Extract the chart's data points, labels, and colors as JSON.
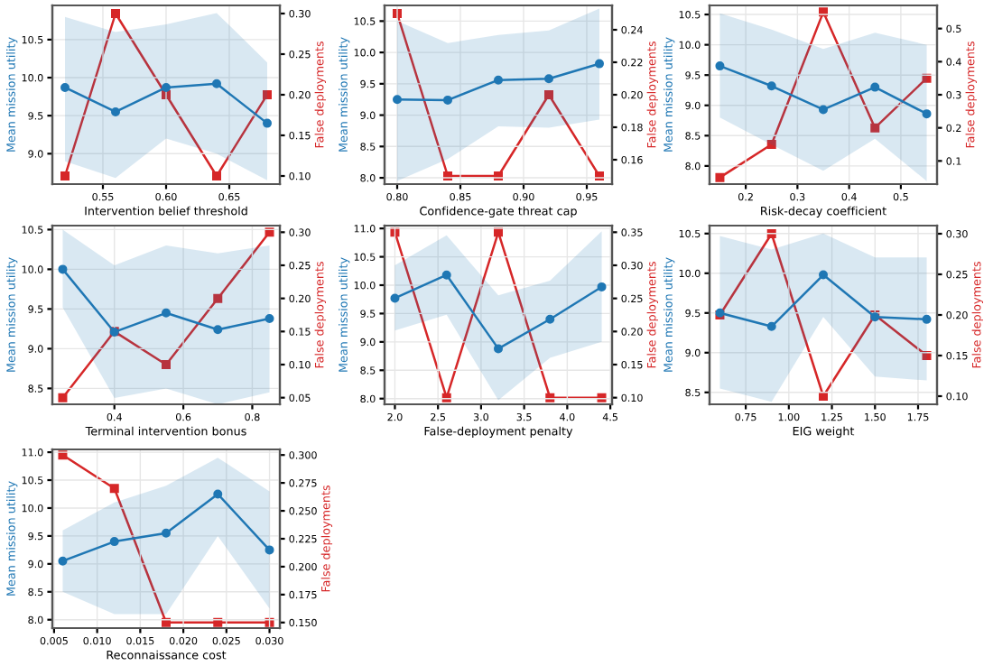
{
  "chart_data": [
    {
      "type": "line",
      "xlabel": "Intervention belief threshold",
      "ylabel": "Mean mission utility",
      "y2label": "False deployments",
      "x": [
        0.52,
        0.56,
        0.6,
        0.64,
        0.68
      ],
      "xlim": [
        0.51,
        0.69
      ],
      "xticks": [
        {
          "value": 0.55,
          "label": "0.55"
        },
        {
          "value": 0.6,
          "label": "0.60"
        },
        {
          "value": 0.65,
          "label": "0.65"
        }
      ],
      "ylim": [
        8.6,
        10.95
      ],
      "yticks": [
        {
          "value": 9,
          "label": "9.0"
        },
        {
          "value": 9.5,
          "label": "9.5"
        },
        {
          "value": 10,
          "label": "10.0"
        },
        {
          "value": 10.5,
          "label": "10.5"
        }
      ],
      "y2lim": [
        0.09,
        0.31
      ],
      "y2ticks": [
        {
          "value": 0.1,
          "label": "0.10"
        },
        {
          "value": 0.15,
          "label": "0.15"
        },
        {
          "value": 0.2,
          "label": "0.20"
        },
        {
          "value": 0.25,
          "label": "0.25"
        },
        {
          "value": 0.3,
          "label": "0.30"
        }
      ],
      "grid": true,
      "series": [
        {
          "color": "#1f77b4",
          "marker": "circle",
          "values": [
            9.87,
            9.55,
            9.87,
            9.92,
            9.4
          ],
          "lower": [
            8.9,
            8.68,
            9.2,
            9.0,
            8.65
          ],
          "upper": [
            10.8,
            10.6,
            10.7,
            10.85,
            10.2
          ]
        },
        {
          "color": "#d62728",
          "marker": "square",
          "axis": "y2",
          "values": [
            0.1,
            0.3,
            0.2,
            0.1,
            0.2
          ]
        }
      ]
    },
    {
      "type": "line",
      "xlabel": "Confidence-gate threat cap",
      "ylabel": "Mean mission utility",
      "y2label": "False deployments",
      "x": [
        0.8,
        0.84,
        0.88,
        0.92,
        0.96
      ],
      "xlim": [
        0.79,
        0.97
      ],
      "xticks": [
        {
          "value": 0.8,
          "label": "0.80"
        },
        {
          "value": 0.85,
          "label": "0.85"
        },
        {
          "value": 0.9,
          "label": "0.90"
        },
        {
          "value": 0.95,
          "label": "0.95"
        }
      ],
      "ylim": [
        7.9,
        10.75
      ],
      "yticks": [
        {
          "value": 8,
          "label": "8.0"
        },
        {
          "value": 8.5,
          "label": "8.5"
        },
        {
          "value": 9,
          "label": "9.0"
        },
        {
          "value": 9.5,
          "label": "9.5"
        },
        {
          "value": 10,
          "label": "10.0"
        },
        {
          "value": 10.5,
          "label": "10.5"
        }
      ],
      "y2lim": [
        0.145,
        0.255
      ],
      "y2ticks": [
        {
          "value": 0.16,
          "label": "0.16"
        },
        {
          "value": 0.18,
          "label": "0.18"
        },
        {
          "value": 0.2,
          "label": "0.20"
        },
        {
          "value": 0.22,
          "label": "0.22"
        },
        {
          "value": 0.24,
          "label": "0.24"
        }
      ],
      "grid": true,
      "series": [
        {
          "color": "#1f77b4",
          "marker": "circle",
          "values": [
            9.25,
            9.24,
            9.56,
            9.58,
            9.82
          ],
          "lower": [
            7.95,
            8.3,
            8.82,
            8.8,
            8.93
          ],
          "upper": [
            10.5,
            10.15,
            10.28,
            10.35,
            10.7
          ]
        },
        {
          "color": "#d62728",
          "marker": "square",
          "axis": "y2",
          "values": [
            0.25,
            0.15,
            0.15,
            0.2,
            0.15
          ]
        }
      ]
    },
    {
      "type": "line",
      "xlabel": "Risk-decay coefficient",
      "ylabel": "Mean mission utility",
      "y2label": "False deployments",
      "x": [
        0.15,
        0.25,
        0.35,
        0.45,
        0.55
      ],
      "xlim": [
        0.13,
        0.57
      ],
      "xticks": [
        {
          "value": 0.2,
          "label": "0.2"
        },
        {
          "value": 0.3,
          "label": "0.3"
        },
        {
          "value": 0.4,
          "label": "0.4"
        },
        {
          "value": 0.5,
          "label": "0.5"
        }
      ],
      "ylim": [
        7.7,
        10.65
      ],
      "yticks": [
        {
          "value": 8,
          "label": "8.0"
        },
        {
          "value": 8.5,
          "label": "8.5"
        },
        {
          "value": 9,
          "label": "9.0"
        },
        {
          "value": 9.5,
          "label": "9.5"
        },
        {
          "value": 10,
          "label": "10.0"
        },
        {
          "value": 10.5,
          "label": "10.5"
        }
      ],
      "y2lim": [
        0.03,
        0.57
      ],
      "y2ticks": [
        {
          "value": 0.1,
          "label": "0.1"
        },
        {
          "value": 0.2,
          "label": "0.2"
        },
        {
          "value": 0.3,
          "label": "0.3"
        },
        {
          "value": 0.4,
          "label": "0.4"
        },
        {
          "value": 0.5,
          "label": "0.5"
        }
      ],
      "grid": true,
      "series": [
        {
          "color": "#1f77b4",
          "marker": "circle",
          "values": [
            9.65,
            9.32,
            8.93,
            9.3,
            8.86
          ],
          "lower": [
            8.8,
            8.35,
            7.92,
            8.45,
            7.75
          ],
          "upper": [
            10.52,
            10.25,
            9.93,
            10.2,
            10.0
          ]
        },
        {
          "color": "#d62728",
          "marker": "square",
          "axis": "y2",
          "values": [
            0.05,
            0.15,
            0.55,
            0.2,
            0.35
          ]
        }
      ]
    },
    {
      "type": "line",
      "xlabel": "Terminal intervention bonus",
      "ylabel": "Mean mission utility",
      "y2label": "False deployments",
      "x": [
        0.25,
        0.4,
        0.55,
        0.7,
        0.85
      ],
      "xlim": [
        0.22,
        0.88
      ],
      "xticks": [
        {
          "value": 0.4,
          "label": "0.4"
        },
        {
          "value": 0.6,
          "label": "0.6"
        },
        {
          "value": 0.8,
          "label": "0.8"
        }
      ],
      "ylim": [
        8.3,
        10.55
      ],
      "yticks": [
        {
          "value": 8.5,
          "label": "8.5"
        },
        {
          "value": 9,
          "label": "9.0"
        },
        {
          "value": 9.5,
          "label": "9.5"
        },
        {
          "value": 10,
          "label": "10.0"
        },
        {
          "value": 10.5,
          "label": "10.5"
        }
      ],
      "y2lim": [
        0.04,
        0.31
      ],
      "y2ticks": [
        {
          "value": 0.05,
          "label": "0.05"
        },
        {
          "value": 0.1,
          "label": "0.10"
        },
        {
          "value": 0.15,
          "label": "0.15"
        },
        {
          "value": 0.2,
          "label": "0.20"
        },
        {
          "value": 0.25,
          "label": "0.25"
        },
        {
          "value": 0.3,
          "label": "0.30"
        }
      ],
      "grid": true,
      "series": [
        {
          "color": "#1f77b4",
          "marker": "circle",
          "values": [
            10.0,
            9.21,
            9.45,
            9.24,
            9.38
          ],
          "lower": [
            9.52,
            8.38,
            8.5,
            8.3,
            8.45
          ],
          "upper": [
            10.5,
            10.05,
            10.3,
            10.2,
            10.3
          ]
        },
        {
          "color": "#d62728",
          "marker": "square",
          "axis": "y2",
          "values": [
            0.05,
            0.15,
            0.1,
            0.2,
            0.3
          ]
        }
      ]
    },
    {
      "type": "line",
      "xlabel": "False-deployment penalty",
      "ylabel": "Mean mission utility",
      "y2label": "False deployments",
      "x": [
        2.0,
        2.6,
        3.2,
        3.8,
        4.4
      ],
      "xlim": [
        1.88,
        4.52
      ],
      "xticks": [
        {
          "value": 2,
          "label": "2.0"
        },
        {
          "value": 2.5,
          "label": "2.5"
        },
        {
          "value": 3,
          "label": "3.0"
        },
        {
          "value": 3.5,
          "label": "3.5"
        },
        {
          "value": 4,
          "label": "4.0"
        },
        {
          "value": 4.5,
          "label": "4.5"
        }
      ],
      "ylim": [
        7.9,
        11.05
      ],
      "yticks": [
        {
          "value": 8,
          "label": "8.0"
        },
        {
          "value": 8.5,
          "label": "8.5"
        },
        {
          "value": 9,
          "label": "9.0"
        },
        {
          "value": 9.5,
          "label": "9.5"
        },
        {
          "value": 10,
          "label": "10.0"
        },
        {
          "value": 10.5,
          "label": "10.5"
        },
        {
          "value": 11,
          "label": "11.0"
        }
      ],
      "y2lim": [
        0.09,
        0.36
      ],
      "y2ticks": [
        {
          "value": 0.1,
          "label": "0.10"
        },
        {
          "value": 0.15,
          "label": "0.15"
        },
        {
          "value": 0.2,
          "label": "0.20"
        },
        {
          "value": 0.25,
          "label": "0.25"
        },
        {
          "value": 0.3,
          "label": "0.30"
        },
        {
          "value": 0.35,
          "label": "0.35"
        }
      ],
      "grid": true,
      "series": [
        {
          "color": "#1f77b4",
          "marker": "circle",
          "values": [
            9.77,
            10.18,
            8.88,
            9.4,
            9.97
          ],
          "lower": [
            9.2,
            9.48,
            7.97,
            8.72,
            9.0
          ],
          "upper": [
            10.35,
            10.88,
            9.82,
            10.08,
            10.95
          ]
        },
        {
          "color": "#d62728",
          "marker": "square",
          "axis": "y2",
          "values": [
            0.35,
            0.1,
            0.35,
            0.1,
            0.1
          ]
        }
      ]
    },
    {
      "type": "line",
      "xlabel": "EIG weight",
      "ylabel": "Mean mission utility",
      "y2label": "False deployments",
      "x": [
        0.6,
        0.9,
        1.2,
        1.5,
        1.8
      ],
      "xlim": [
        0.54,
        1.86
      ],
      "xticks": [
        {
          "value": 0.75,
          "label": "0.75"
        },
        {
          "value": 1,
          "label": "1.00"
        },
        {
          "value": 1.25,
          "label": "1.25"
        },
        {
          "value": 1.5,
          "label": "1.50"
        },
        {
          "value": 1.75,
          "label": "1.75"
        }
      ],
      "ylim": [
        8.35,
        10.6
      ],
      "yticks": [
        {
          "value": 8.5,
          "label": "8.5"
        },
        {
          "value": 9,
          "label": "9.0"
        },
        {
          "value": 9.5,
          "label": "9.5"
        },
        {
          "value": 10,
          "label": "10.0"
        },
        {
          "value": 10.5,
          "label": "10.5"
        }
      ],
      "y2lim": [
        0.09,
        0.31
      ],
      "y2ticks": [
        {
          "value": 0.1,
          "label": "0.10"
        },
        {
          "value": 0.15,
          "label": "0.15"
        },
        {
          "value": 0.2,
          "label": "0.20"
        },
        {
          "value": 0.25,
          "label": "0.25"
        },
        {
          "value": 0.3,
          "label": "0.30"
        }
      ],
      "grid": true,
      "series": [
        {
          "color": "#1f77b4",
          "marker": "circle",
          "values": [
            9.5,
            9.33,
            9.98,
            9.45,
            9.42
          ],
          "lower": [
            8.55,
            8.38,
            9.45,
            8.7,
            8.65
          ],
          "upper": [
            10.47,
            10.3,
            10.5,
            10.2,
            10.2
          ]
        },
        {
          "color": "#d62728",
          "marker": "square",
          "axis": "y2",
          "values": [
            0.2,
            0.3,
            0.1,
            0.2,
            0.15
          ]
        }
      ]
    },
    {
      "type": "line",
      "xlabel": "Reconnaissance cost",
      "ylabel": "Mean mission utility",
      "y2label": "False deployments",
      "x": [
        0.006,
        0.012,
        0.018,
        0.024,
        0.03
      ],
      "xlim": [
        0.0048,
        0.0312
      ],
      "xticks": [
        {
          "value": 0.005,
          "label": "0.005"
        },
        {
          "value": 0.01,
          "label": "0.010"
        },
        {
          "value": 0.015,
          "label": "0.015"
        },
        {
          "value": 0.02,
          "label": "0.020"
        },
        {
          "value": 0.025,
          "label": "0.025"
        },
        {
          "value": 0.03,
          "label": "0.030"
        }
      ],
      "ylim": [
        7.85,
        11.05
      ],
      "yticks": [
        {
          "value": 8,
          "label": "8.0"
        },
        {
          "value": 8.5,
          "label": "8.5"
        },
        {
          "value": 9,
          "label": "9.0"
        },
        {
          "value": 9.5,
          "label": "9.5"
        },
        {
          "value": 10,
          "label": "10.0"
        },
        {
          "value": 10.5,
          "label": "10.5"
        },
        {
          "value": 11,
          "label": "11.0"
        }
      ],
      "y2lim": [
        0.145,
        0.305
      ],
      "y2ticks": [
        {
          "value": 0.15,
          "label": "0.150"
        },
        {
          "value": 0.175,
          "label": "0.175"
        },
        {
          "value": 0.2,
          "label": "0.200"
        },
        {
          "value": 0.225,
          "label": "0.225"
        },
        {
          "value": 0.25,
          "label": "0.250"
        },
        {
          "value": 0.275,
          "label": "0.275"
        },
        {
          "value": 0.3,
          "label": "0.300"
        }
      ],
      "grid": true,
      "series": [
        {
          "color": "#1f77b4",
          "marker": "circle",
          "values": [
            9.05,
            9.4,
            9.55,
            10.25,
            9.25
          ],
          "lower": [
            8.5,
            8.1,
            8.1,
            9.5,
            8.2
          ],
          "upper": [
            9.6,
            10.1,
            10.4,
            10.9,
            10.3
          ]
        },
        {
          "color": "#d62728",
          "marker": "square",
          "axis": "y2",
          "values": [
            0.3,
            0.27,
            0.15,
            0.15,
            0.15
          ]
        }
      ]
    }
  ]
}
